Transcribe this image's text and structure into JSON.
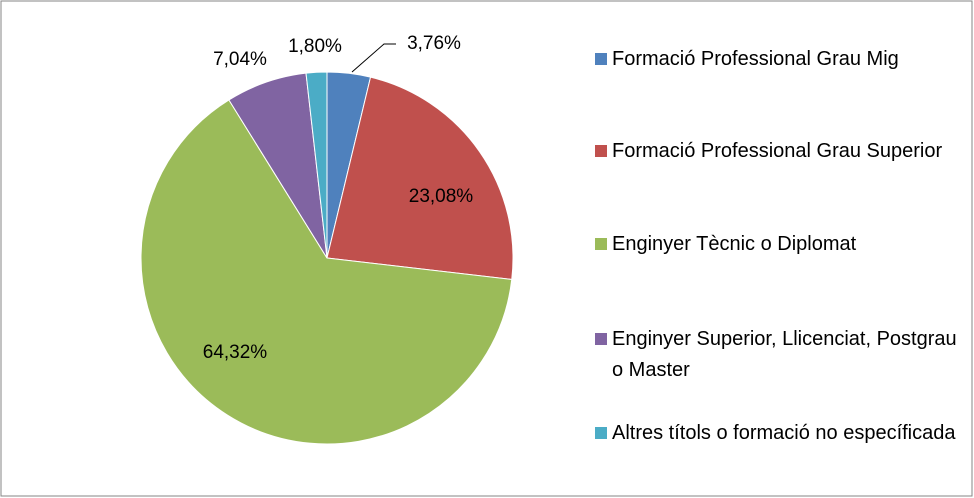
{
  "chart_data": {
    "type": "pie",
    "categories": [
      "Formació Professional Grau Mig",
      "Formació Professional Grau Superior",
      "Enginyer Tècnic o Diplomat",
      "Enginyer Superior, Llicenciat, Postgrau o Master",
      "Altres títols o formació no específicada"
    ],
    "values": [
      3.76,
      23.08,
      64.32,
      7.04,
      1.8
    ],
    "value_labels": [
      "3,76%",
      "23,08%",
      "64,32%",
      "7,04%",
      "1,80%"
    ],
    "colors": [
      "#4f81bd",
      "#c0504d",
      "#9bbb59",
      "#8064a2",
      "#4bacc6"
    ],
    "legend": "right"
  }
}
